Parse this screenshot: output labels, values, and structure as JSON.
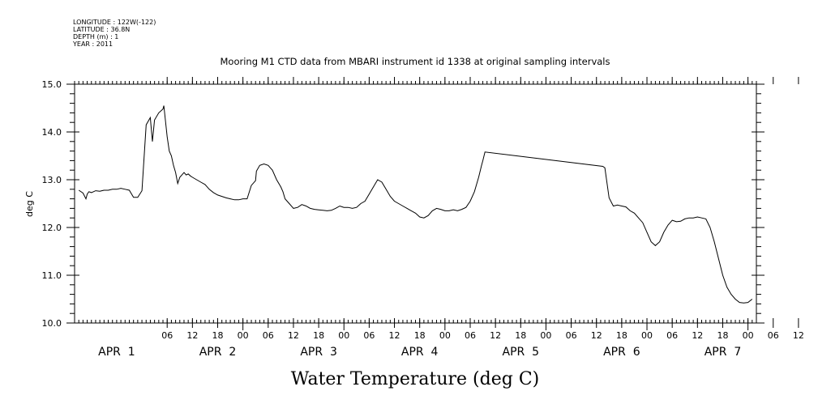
{
  "header": {
    "longitude": "LONGITUDE : 122W(-122)",
    "latitude": "LATITUDE : 36.8N",
    "depth": "DEPTH (m) : 1",
    "year": "YEAR : 2011"
  },
  "chart_data": {
    "type": "line",
    "title": "Mooring M1 CTD data from MBARI instrument id 1338 at original sampling intervals",
    "ylabel": "deg C",
    "xlabel": "Water Temperature (deg C)",
    "ylim": [
      10.0,
      15.0
    ],
    "yticks": [
      "10.0",
      "11.0",
      "12.0",
      "13.0",
      "14.0",
      "15.0"
    ],
    "x_units": "hours since APR 1 00:00",
    "xlim": [
      -16,
      146
    ],
    "hour_labels": [
      "06",
      "12",
      "18",
      "00",
      "06",
      "12",
      "18",
      "00",
      "06",
      "12",
      "18",
      "00",
      "06",
      "12",
      "18",
      "00",
      "06",
      "12",
      "18",
      "00",
      "06",
      "12",
      "18",
      "00",
      "06",
      "12",
      "18",
      "00"
    ],
    "date_labels": [
      "APR 1",
      "APR 2",
      "APR 3",
      "APR 4",
      "APR 5",
      "APR 6",
      "APR 7"
    ],
    "grid": false,
    "series": [
      {
        "x": [
          -15,
          -14,
          -13.3,
          -13,
          -12.6,
          -12,
          -11,
          -10,
          -9,
          -8,
          -7,
          -6,
          -5,
          -4,
          -3,
          -2,
          -1,
          0,
          1,
          2,
          2.5,
          3,
          4,
          5,
          5.2,
          6,
          6.5,
          7,
          7.5,
          8,
          8.5,
          9,
          9.5,
          10,
          10.5,
          11,
          11.5,
          12,
          13,
          14,
          15,
          16,
          17,
          18,
          19,
          20,
          21,
          22,
          23,
          24,
          25,
          26,
          27,
          27.2,
          28,
          29,
          30,
          30.5,
          31,
          32,
          33,
          33.5,
          34,
          35,
          36,
          37,
          38,
          39,
          40,
          41,
          42,
          43,
          44,
          45,
          46,
          47,
          48,
          49,
          50,
          51,
          52,
          53,
          54,
          55,
          56,
          57,
          58,
          59,
          60,
          61,
          62,
          63,
          64,
          65,
          66,
          67,
          68,
          69,
          70,
          71,
          72,
          73,
          74,
          75,
          76,
          77,
          78,
          79,
          79.5,
          80,
          80.7,
          81,
          81.5,
          109.5,
          110,
          111,
          112,
          113,
          114,
          115,
          116,
          117,
          118,
          119,
          120,
          121,
          122,
          123,
          124,
          125,
          126,
          127,
          128,
          129,
          130,
          131,
          132,
          133,
          134,
          135,
          136,
          137,
          138,
          139,
          140,
          141,
          142,
          143,
          144,
          145
        ],
        "values": [
          12.78,
          12.72,
          12.6,
          12.7,
          12.75,
          12.73,
          12.77,
          12.76,
          12.78,
          12.78,
          12.8,
          12.8,
          12.82,
          12.8,
          12.78,
          12.63,
          12.63,
          12.77,
          14.15,
          14.3,
          13.8,
          14.25,
          14.4,
          14.48,
          14.55,
          13.9,
          13.6,
          13.5,
          13.3,
          13.15,
          12.92,
          13.05,
          13.1,
          13.15,
          13.1,
          13.12,
          13.08,
          13.05,
          13.0,
          12.95,
          12.9,
          12.8,
          12.73,
          12.68,
          12.65,
          12.62,
          12.6,
          12.58,
          12.58,
          12.6,
          12.6,
          12.88,
          12.98,
          13.18,
          13.3,
          13.33,
          13.3,
          13.25,
          13.2,
          13.0,
          12.85,
          12.75,
          12.6,
          12.5,
          12.4,
          12.42,
          12.48,
          12.45,
          12.4,
          12.38,
          12.37,
          12.36,
          12.35,
          12.36,
          12.4,
          12.45,
          12.42,
          12.42,
          12.4,
          12.42,
          12.5,
          12.55,
          12.7,
          12.85,
          13.0,
          12.95,
          12.8,
          12.65,
          12.55,
          12.5,
          12.45,
          12.4,
          12.35,
          12.3,
          12.22,
          12.2,
          12.25,
          12.35,
          12.4,
          12.38,
          12.35,
          12.35,
          12.37,
          12.35,
          12.38,
          12.42,
          12.55,
          12.75,
          12.9,
          13.05,
          13.3,
          13.4,
          13.58,
          13.28,
          13.25,
          12.62,
          12.45,
          12.47,
          12.45,
          12.43,
          12.35,
          12.3,
          12.2,
          12.1,
          11.9,
          11.7,
          11.62,
          11.7,
          11.9,
          12.05,
          12.15,
          12.12,
          12.13,
          12.18,
          12.2,
          12.2,
          12.22,
          12.2,
          12.18,
          12.0,
          11.7,
          11.35,
          11.0,
          10.75,
          10.6,
          10.5,
          10.43,
          10.42,
          10.43,
          10.5
        ]
      }
    ]
  }
}
